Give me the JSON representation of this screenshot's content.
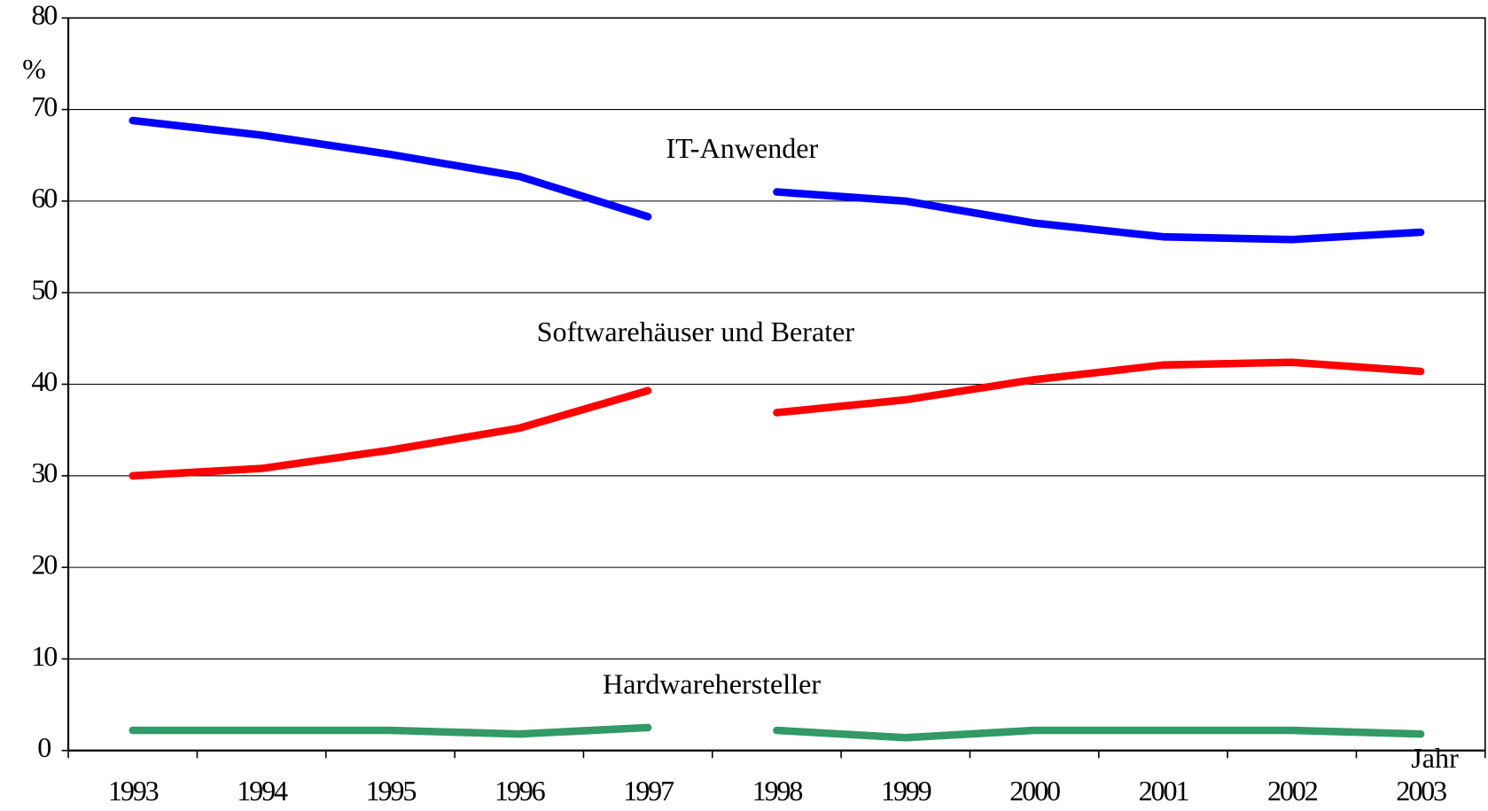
{
  "chart_data": {
    "type": "line",
    "y_unit": "%",
    "x_label": "Jahr",
    "categories": [
      "1993",
      "1994",
      "1995",
      "1996",
      "1997",
      "1998",
      "1999",
      "2000",
      "2001",
      "2002",
      "2003"
    ],
    "break_between": [
      "1997",
      "1998"
    ],
    "series": [
      {
        "name": "IT-Anwender",
        "color": "#0000ff",
        "values": [
          68.8,
          67.2,
          65.1,
          62.7,
          58.3,
          61,
          60,
          57.6,
          56.1,
          55.8,
          56.6
        ]
      },
      {
        "name": "Softwarehäuser und Berater",
        "color": "#ff0000",
        "values": [
          30,
          30.8,
          32.8,
          35.2,
          39.3,
          36.9,
          38.3,
          40.5,
          42.1,
          42.4,
          41.4
        ]
      },
      {
        "name": "Hardwarehersteller",
        "color": "#339966",
        "values": [
          2.2,
          2.2,
          2.2,
          1.8,
          2.5,
          2.2,
          1.4,
          2.2,
          2.2,
          2.2,
          1.8
        ]
      }
    ],
    "ylim": [
      0,
      80
    ],
    "yticks": [
      0,
      10,
      20,
      30,
      40,
      50,
      60,
      70,
      80
    ],
    "grid": true
  }
}
